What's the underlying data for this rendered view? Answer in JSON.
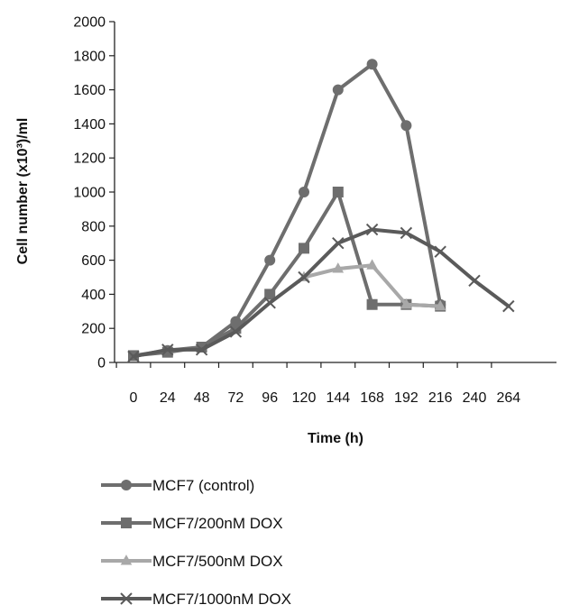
{
  "chart_data": {
    "type": "line",
    "title": "",
    "xlabel": "Time (h)",
    "ylabel": "Cell number (x10³)/ml",
    "x_categories": [
      "0",
      "24",
      "48",
      "72",
      "96",
      "120",
      "144",
      "168",
      "192",
      "216",
      "240",
      "264"
    ],
    "y_ticks": [
      "0",
      "200",
      "400",
      "600",
      "800",
      "1000",
      "1200",
      "1400",
      "1600",
      "1800",
      "2000"
    ],
    "ylim": [
      0,
      2000
    ],
    "grid": false,
    "legend_position": "bottom",
    "series": [
      {
        "name": "MCF7 (control)",
        "marker": "circle",
        "color": "#6e6e6e",
        "x": [
          0,
          24,
          48,
          72,
          96,
          120,
          144,
          168,
          192,
          216
        ],
        "y": [
          40,
          70,
          90,
          240,
          600,
          1000,
          1600,
          1750,
          1390,
          340
        ]
      },
      {
        "name": "MCF7/200nM DOX",
        "marker": "square",
        "color": "#6e6e6e",
        "x": [
          0,
          24,
          48,
          72,
          96,
          120,
          144,
          168,
          192,
          216
        ],
        "y": [
          40,
          60,
          90,
          200,
          400,
          670,
          1000,
          340,
          340,
          330
        ]
      },
      {
        "name": "MCF7/500nM DOX",
        "marker": "triangle",
        "color": "#a8a8a8",
        "x": [
          120,
          144,
          168,
          192,
          216
        ],
        "y": [
          500,
          550,
          570,
          340,
          330
        ]
      },
      {
        "name": "MCF7/1000nM DOX",
        "marker": "x",
        "color": "#5a5a5a",
        "x": [
          0,
          24,
          48,
          72,
          96,
          120,
          144,
          168,
          192,
          216,
          240,
          264
        ],
        "y": [
          35,
          75,
          75,
          180,
          350,
          500,
          700,
          780,
          760,
          650,
          480,
          330
        ]
      }
    ]
  }
}
